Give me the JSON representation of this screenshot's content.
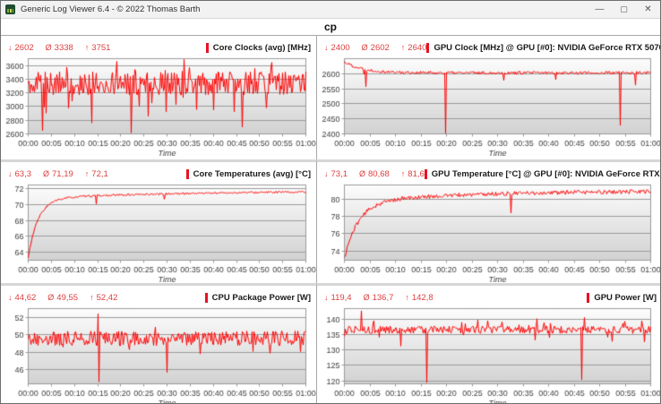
{
  "window": {
    "title": "Generic Log Viewer 6.4 - © 2022 Thomas Barth",
    "controls": {
      "minimize": "—",
      "maximize": "▢",
      "close": "✕"
    }
  },
  "page_title": "cp",
  "glyphs": {
    "min": "↓",
    "avg": "Ø",
    "max": "↑"
  },
  "colors": {
    "stat_red": "#dd4040",
    "accent_red": "#e81123",
    "line_red": "#ff0000",
    "grid_line": "#9b9b9b"
  },
  "x_axis": {
    "label": "Time",
    "ticks": [
      "00:00",
      "00:05",
      "00:10",
      "00:15",
      "00:20",
      "00:25",
      "00:30",
      "00:35",
      "00:40",
      "00:45",
      "00:50",
      "00:55",
      "01:00"
    ]
  },
  "chart_data": [
    {
      "type": "line",
      "title": "Core Clocks (avg) [MHz]",
      "stats": {
        "min": "2602",
        "avg": "3338",
        "max": "3751"
      },
      "ylim": [
        2600,
        3700
      ],
      "yticks": [
        2600,
        2800,
        3000,
        3200,
        3400,
        3600
      ],
      "series": {
        "model": "noisy",
        "seed": 11,
        "base": 3340,
        "amp": 170,
        "dip_prob": 0.055,
        "dip_amp": 520,
        "up_prob": 0.02,
        "up_amp": 330,
        "spikes": [
          {
            "t": 0.05,
            "v": 2650
          },
          {
            "t": 0.23,
            "v": 2760
          },
          {
            "t": 0.37,
            "v": 2615
          },
          {
            "t": 0.56,
            "v": 3690
          },
          {
            "t": 0.77,
            "v": 2700
          }
        ]
      }
    },
    {
      "type": "line",
      "title": "GPU Clock [MHz] @ GPU [#0]: NVIDIA GeForce RTX 5070 Ti Laptop",
      "stats": {
        "min": "2400",
        "avg": "2602",
        "max": "2640"
      },
      "ylim": [
        2400,
        2650
      ],
      "yticks": [
        2400,
        2450,
        2500,
        2550,
        2600
      ],
      "series": {
        "model": "decay",
        "seed": 22,
        "start": 2640,
        "end": 2603,
        "tau": 0.06,
        "noise": 5,
        "spikes": [
          {
            "t": 0.065,
            "v": 2598
          },
          {
            "t": 0.07,
            "v": 2557
          },
          {
            "t": 0.075,
            "v": 2612
          },
          {
            "t": 0.33,
            "v": 2401
          },
          {
            "t": 0.52,
            "v": 2578
          },
          {
            "t": 0.69,
            "v": 2580
          },
          {
            "t": 0.9,
            "v": 2428
          },
          {
            "t": 0.95,
            "v": 2562
          }
        ]
      }
    },
    {
      "type": "line",
      "title": "Core Temperatures (avg) [°C]",
      "stats": {
        "min": "63,3",
        "avg": "71,19",
        "max": "72,1"
      },
      "ylim": [
        63,
        72.5
      ],
      "yticks": [
        64,
        66,
        68,
        70,
        72
      ],
      "series": {
        "model": "rise2",
        "seed": 33,
        "p": 71.75,
        "a1": 7.45,
        "tau1": 0.035,
        "a2": 1.0,
        "tau2": 0.5,
        "noise": 0.12,
        "spikes": [
          {
            "t": 0.245,
            "v": 70.1
          },
          {
            "t": 0.49,
            "v": 70.7
          }
        ]
      }
    },
    {
      "type": "line",
      "title": "GPU Temperature [°C] @ GPU [#0]: NVIDIA GeForce RTX 5070 Ti Laptop",
      "stats": {
        "min": "73,1",
        "avg": "80,68",
        "max": "81,6"
      },
      "ylim": [
        72.9,
        81.7
      ],
      "yticks": [
        74,
        76,
        78,
        80
      ],
      "series": {
        "model": "rise2",
        "seed": 44,
        "p": 81.0,
        "a1": 6.5,
        "tau1": 0.045,
        "a2": 1.4,
        "tau2": 0.35,
        "noise": 0.24,
        "spikes": [
          {
            "t": 0.545,
            "v": 78.4
          }
        ]
      }
    },
    {
      "type": "line",
      "title": "CPU Package Power [W]",
      "stats": {
        "min": "44,62",
        "avg": "49,55",
        "max": "52,42"
      },
      "ylim": [
        44.4,
        53
      ],
      "yticks": [
        46,
        48,
        50,
        52
      ],
      "series": {
        "model": "noisy",
        "seed": 55,
        "base": 49.6,
        "amp": 0.85,
        "dip_prob": 0.015,
        "dip_amp": 2.0,
        "up_prob": 0.01,
        "up_amp": 1.3,
        "spikes": [
          {
            "t": 0.252,
            "v": 52.42
          },
          {
            "t": 0.256,
            "v": 44.62
          },
          {
            "t": 0.5,
            "v": 45.7
          },
          {
            "t": 0.87,
            "v": 47.9
          }
        ]
      }
    },
    {
      "type": "line",
      "title": "GPU Power [W]",
      "stats": {
        "min": "119,4",
        "avg": "136,7",
        "max": "142,8"
      },
      "ylim": [
        119,
        143.5
      ],
      "yticks": [
        120,
        125,
        130,
        135,
        140
      ],
      "series": {
        "model": "noisy",
        "seed": 66,
        "base": 136.6,
        "amp": 1.2,
        "dip_prob": 0.012,
        "dip_amp": 4,
        "up_prob": 0.025,
        "up_amp": 3,
        "spikes": [
          {
            "t": 0.055,
            "v": 142.8
          },
          {
            "t": 0.185,
            "v": 131.3
          },
          {
            "t": 0.27,
            "v": 119.4
          },
          {
            "t": 0.435,
            "v": 139.8
          },
          {
            "t": 0.63,
            "v": 140.2
          },
          {
            "t": 0.775,
            "v": 120.3
          },
          {
            "t": 0.785,
            "v": 140.6
          },
          {
            "t": 0.875,
            "v": 132.8
          },
          {
            "t": 0.97,
            "v": 139.5
          }
        ]
      }
    }
  ]
}
